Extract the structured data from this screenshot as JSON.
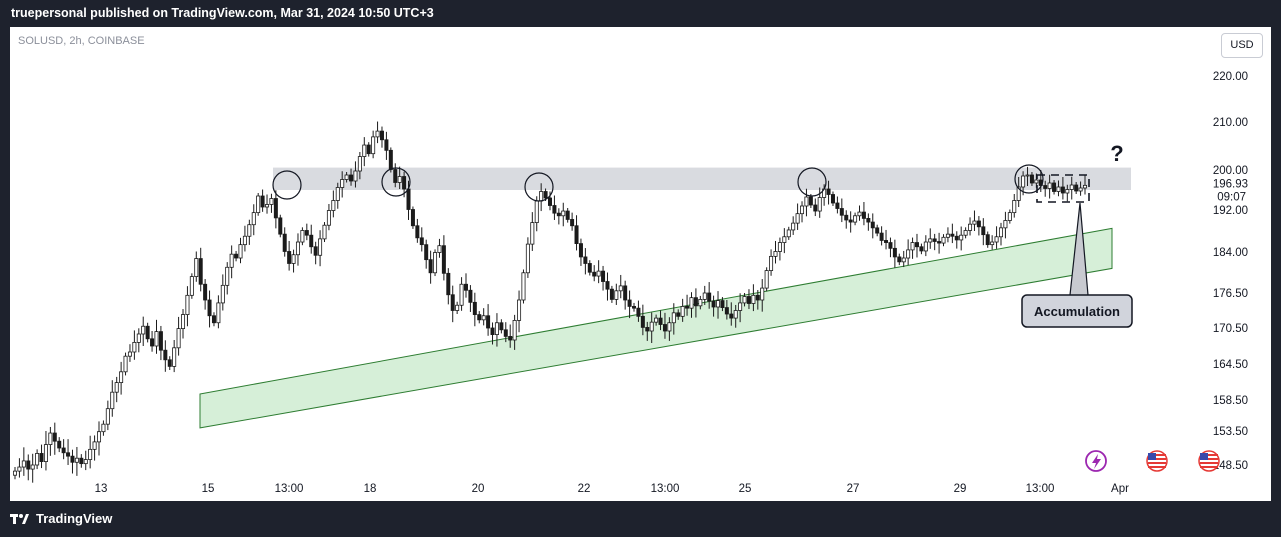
{
  "header": {
    "published": "truepersonal published on TradingView.com, Mar 31, 2024 10:50 UTC+3"
  },
  "toolbar": {
    "currency_label": "USD"
  },
  "footer": {
    "brand": "TradingView"
  },
  "chart_data": {
    "type": "candlestick",
    "symbol_label": "SOLUSD, 2h, COINBASE",
    "y_ticks": [
      "220.00",
      "210.00",
      "200.00",
      "192.00",
      "184.00",
      "176.50",
      "170.50",
      "164.50",
      "158.50",
      "153.50",
      "148.50"
    ],
    "x_ticks": [
      "13",
      "15",
      "13:00",
      "18",
      "20",
      "22",
      "13:00",
      "25",
      "27",
      "29",
      "13:00",
      "Apr"
    ],
    "last_price": "196.93",
    "countdown": "09:07",
    "annotations": {
      "accumulation": "Accumulation",
      "question": "?"
    },
    "resistance_zone": [
      196,
      200.5
    ],
    "support_channel": {
      "upper": [
        159.5,
        188.5
      ],
      "lower": [
        154,
        181
      ]
    },
    "closes": [
      147.6,
      148.2,
      149.1,
      147.9,
      148.5,
      150.2,
      149.0,
      151.5,
      153.2,
      152.0,
      151.0,
      150.3,
      149.8,
      148.9,
      149.5,
      148.7,
      149.3,
      150.8,
      151.9,
      153.4,
      154.6,
      157.1,
      159.8,
      161.4,
      163.2,
      165.8,
      166.5,
      168.1,
      169.5,
      170.8,
      168.7,
      167.5,
      169.9,
      166.8,
      165.2,
      164.1,
      167.2,
      170.4,
      172.8,
      176.1,
      179.5,
      182.8,
      178.1,
      175.3,
      172.6,
      171.4,
      174.8,
      177.9,
      181.2,
      183.6,
      182.9,
      185.4,
      187.0,
      189.2,
      191.5,
      194.8,
      192.6,
      193.1,
      194.3,
      190.5,
      187.4,
      184.1,
      181.9,
      183.5,
      185.9,
      188.1,
      187.2,
      185.0,
      183.4,
      186.5,
      189.1,
      191.9,
      193.9,
      196.5,
      198.1,
      199.0,
      197.8,
      199.8,
      202.8,
      205.2,
      203.4,
      206.9,
      208.1,
      206.3,
      204.1,
      200.1,
      197.5,
      198.7,
      196.2,
      192.1,
      189.0,
      186.7,
      185.4,
      182.6,
      180.2,
      183.9,
      185.2,
      180.1,
      176.2,
      173.5,
      174.4,
      178.1,
      177.0,
      174.9,
      172.8,
      171.9,
      172.6,
      170.5,
      169.4,
      171.4,
      170.2,
      169.1,
      168.5,
      171.8,
      175.3,
      180.2,
      185.5,
      189.6,
      193.8,
      195.7,
      194.4,
      192.9,
      191.4,
      190.9,
      191.8,
      190.2,
      189.0,
      185.6,
      183.1,
      181.9,
      180.3,
      179.6,
      180.5,
      178.6,
      177.2,
      175.4,
      176.9,
      177.8,
      175.3,
      174.2,
      173.9,
      172.5,
      170.6,
      170.0,
      171.5,
      172.2,
      171.1,
      170.0,
      171.4,
      173.1,
      172.5,
      174.2,
      173.9,
      175.7,
      174.3,
      175.4,
      176.5,
      175.1,
      174.1,
      175.2,
      174.0,
      172.9,
      172.2,
      173.5,
      174.8,
      175.9,
      174.7,
      176.1,
      175.3,
      177.4,
      180.6,
      183.2,
      184.1,
      185.8,
      186.9,
      188.2,
      189.5,
      191.3,
      192.8,
      194.6,
      193.0,
      191.8,
      194.5,
      196.2,
      195.1,
      193.4,
      192.3,
      191.0,
      190.1,
      189.7,
      190.9,
      191.6,
      190.4,
      189.7,
      188.6,
      187.6,
      186.2,
      185.8,
      184.7,
      183.1,
      182.2,
      182.9,
      184.4,
      185.8,
      185.0,
      184.2,
      185.9,
      186.5,
      186.0,
      185.7,
      186.8,
      187.4,
      187.0,
      186.3,
      187.2,
      188.1,
      189.3,
      189.9,
      188.8,
      187.3,
      185.4,
      185.9,
      186.9,
      188.6,
      190.0,
      191.5,
      193.9,
      196.6,
      198.8,
      199.0,
      197.4,
      198.0,
      196.9,
      196.3,
      197.4,
      195.7,
      196.6,
      195.4,
      196.1,
      197.0,
      195.8,
      196.4,
      196.93
    ]
  }
}
